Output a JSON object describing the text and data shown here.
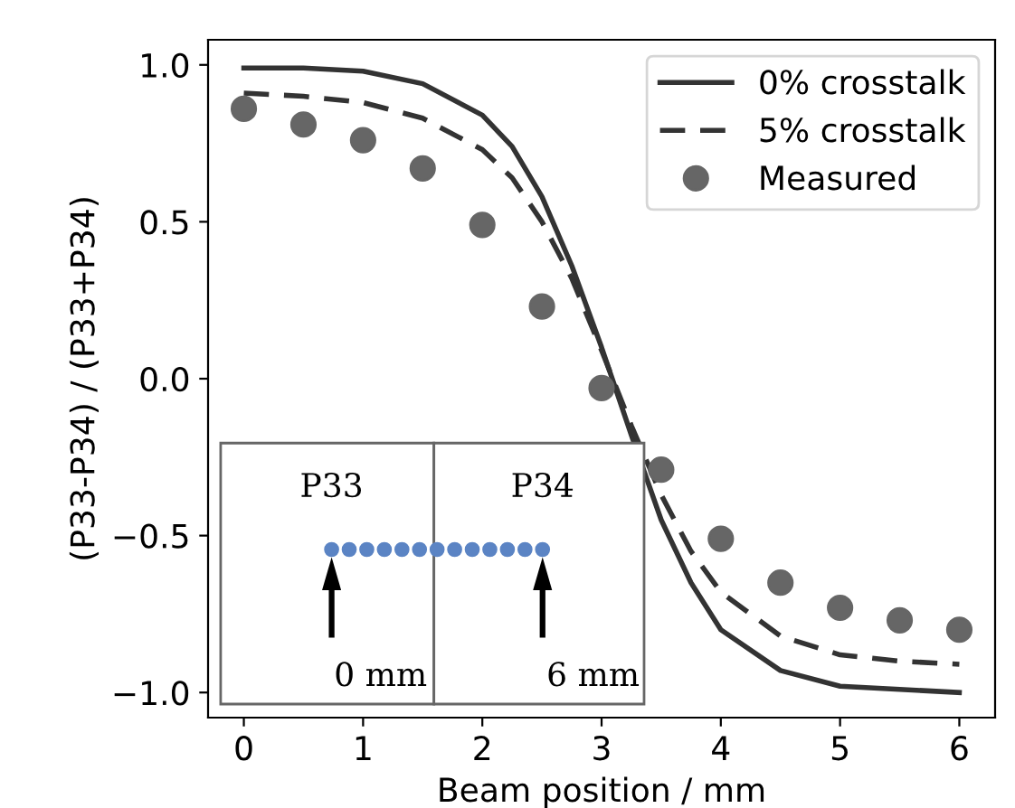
{
  "chart_data": {
    "type": "line",
    "xlabel": "Beam position / mm",
    "ylabel": "(P33-P34) / (P33+P34)",
    "xlim": [
      -0.3,
      6.3
    ],
    "ylim": [
      -1.08,
      1.08
    ],
    "xticks": [
      0,
      1,
      2,
      3,
      4,
      5,
      6
    ],
    "yticks": [
      {
        "value": -1.0,
        "label": "−1.0"
      },
      {
        "value": -0.5,
        "label": "−0.5"
      },
      {
        "value": 0.0,
        "label": "0.0"
      },
      {
        "value": 0.5,
        "label": "0.5"
      },
      {
        "value": 1.0,
        "label": "1.0"
      }
    ],
    "grid": false,
    "legend": "top right",
    "annotations": [
      "P33",
      "P34",
      "0 mm",
      "6 mm"
    ],
    "series": [
      {
        "name": "0% crosstalk",
        "line_style": "solid",
        "color": "#333333",
        "x": [
          0,
          0.5,
          1,
          1.5,
          2,
          2.25,
          2.5,
          2.75,
          3,
          3.25,
          3.5,
          3.75,
          4,
          4.5,
          5,
          5.5,
          6
        ],
        "values": [
          0.99,
          0.99,
          0.98,
          0.94,
          0.84,
          0.74,
          0.58,
          0.36,
          0.1,
          -0.18,
          -0.45,
          -0.65,
          -0.8,
          -0.93,
          -0.98,
          -0.99,
          -1.0
        ]
      },
      {
        "name": "5% crosstalk",
        "line_style": "dashed",
        "color": "#333333",
        "x": [
          0,
          0.5,
          1,
          1.5,
          2,
          2.25,
          2.5,
          2.75,
          3,
          3.25,
          3.5,
          3.75,
          4,
          4.5,
          5,
          5.5,
          6
        ],
        "values": [
          0.91,
          0.9,
          0.88,
          0.83,
          0.73,
          0.64,
          0.5,
          0.32,
          0.09,
          -0.15,
          -0.37,
          -0.55,
          -0.68,
          -0.82,
          -0.88,
          -0.9,
          -0.91
        ]
      },
      {
        "name": "Measured",
        "type": "scatter",
        "marker": "circle",
        "color": "#666666",
        "x": [
          0,
          0.5,
          1,
          1.5,
          2,
          2.5,
          3,
          3.5,
          4,
          4.5,
          5,
          5.5,
          6
        ],
        "values": [
          0.86,
          0.81,
          0.76,
          0.67,
          0.49,
          0.23,
          -0.03,
          -0.29,
          -0.51,
          -0.65,
          -0.73,
          -0.77,
          -0.8
        ]
      }
    ]
  }
}
